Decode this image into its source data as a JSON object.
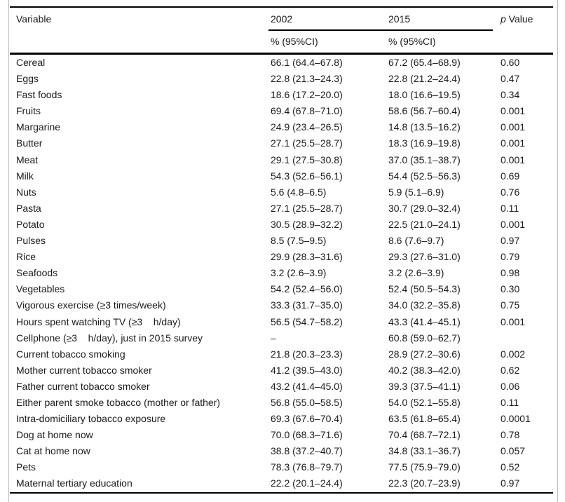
{
  "table": {
    "header": {
      "variable": "Variable",
      "col_2002": "2002",
      "col_2015": "2015",
      "p_italic": "p",
      "p_rest": " Value",
      "subheader_2002": "% (95%CI)",
      "subheader_2015": "% (95%CI)"
    },
    "colors": {
      "rule": "#000000",
      "figure_border": "#bcbcbc",
      "text": "#1a1a1a",
      "background": "#ffffff"
    },
    "rows": [
      {
        "variable": "Cereal",
        "v2002": "66.1 (64.4–67.8)",
        "v2015": "67.2 (65.4–68.9)",
        "p": "0.60"
      },
      {
        "variable": "Eggs",
        "v2002": "22.8 (21.3–24.3)",
        "v2015": "22.8 (21.2–24.4)",
        "p": "0.47"
      },
      {
        "variable": "Fast foods",
        "v2002": "18.6 (17.2–20.0)",
        "v2015": "18.0 (16.6–19.5)",
        "p": "0.34"
      },
      {
        "variable": "Fruits",
        "v2002": "69.4 (67.8–71.0)",
        "v2015": "58.6 (56.7–60.4)",
        "p": "0.001"
      },
      {
        "variable": "Margarine",
        "v2002": "24.9 (23.4–26.5)",
        "v2015": "14.8 (13.5–16.2)",
        "p": "0.001"
      },
      {
        "variable": "Butter",
        "v2002": "27.1 (25.5–28.7)",
        "v2015": "18.3 (16.9–19.8)",
        "p": "0.001"
      },
      {
        "variable": "Meat",
        "v2002": "29.1 (27.5–30.8)",
        "v2015": "37.0 (35.1–38.7)",
        "p": "0.001"
      },
      {
        "variable": "Milk",
        "v2002": "54.3 (52.6–56.1)",
        "v2015": "54.4 (52.5–56.3)",
        "p": "0.69"
      },
      {
        "variable": "Nuts",
        "v2002": "5.6 (4.8–6.5)",
        "v2015": "5.9 (5.1–6.9)",
        "p": "0.76"
      },
      {
        "variable": "Pasta",
        "v2002": "27.1 (25.5–28.7)",
        "v2015": "30.7 (29.0–32.4)",
        "p": "0.11"
      },
      {
        "variable": "Potato",
        "v2002": "30.5 (28.9–32.2)",
        "v2015": "22.5 (21.0–24.1)",
        "p": "0.001"
      },
      {
        "variable": "Pulses",
        "v2002": "8.5 (7.5–9.5)",
        "v2015": "8.6 (7.6–9.7)",
        "p": "0.97"
      },
      {
        "variable": "Rice",
        "v2002": "29.9 (28.3–31.6)",
        "v2015": "29.3 (27.6–31.0)",
        "p": "0.79"
      },
      {
        "variable": "Seafoods",
        "v2002": "3.2 (2.6–3.9)",
        "v2015": "3.2 (2.6–3.9)",
        "p": "0.98"
      },
      {
        "variable": "Vegetables",
        "v2002": "54.2 (52.4–56.0)",
        "v2015": "52.4 (50.5–54.3)",
        "p": "0.30"
      },
      {
        "variable": "Vigorous exercise (≥3 times/week)",
        "v2002": "33.3 (31.7–35.0)",
        "v2015": "34.0 (32.2–35.8)",
        "p": "0.75"
      },
      {
        "variable": "Hours spent watching TV (≥3    h/day)",
        "v2002": "56.5 (54.7–58.2)",
        "v2015": "43.3 (41.4–45.1)",
        "p": "0.001"
      },
      {
        "variable": "Cellphone (≥3    h/day), just in 2015 survey",
        "v2002": "–",
        "v2015": "60.8 (59.0–62.7)",
        "p": ""
      },
      {
        "variable": "Current tobacco smoking",
        "v2002": "21.8 (20.3–23.3)",
        "v2015": "28.9 (27.2–30.6)",
        "p": "0.002"
      },
      {
        "variable": "Mother current tobacco smoker",
        "v2002": "41.2 (39.5–43.0)",
        "v2015": "40.2 (38.3–42.0)",
        "p": "0.62"
      },
      {
        "variable": "Father current tobacco smoker",
        "v2002": "43.2 (41.4–45.0)",
        "v2015": "39.3 (37.5–41.1)",
        "p": "0.06"
      },
      {
        "variable": "Either parent smoke tobacco (mother or father)",
        "v2002": "56.8 (55.0–58.5)",
        "v2015": "54.0 (52.1–55.8)",
        "p": "0.11"
      },
      {
        "variable": "Intra-domiciliary tobacco exposure",
        "v2002": "69.3 (67.6–70.4)",
        "v2015": "63.5 (61.8–65.4)",
        "p": "0.0001"
      },
      {
        "variable": "Dog at home now",
        "v2002": "70.0 (68.3–71.6)",
        "v2015": "70.4 (68.7–72.1)",
        "p": "0.78"
      },
      {
        "variable": "Cat at home now",
        "v2002": "38.8 (37.2–40.7)",
        "v2015": "34.8 (33.1–36.7)",
        "p": "0.057"
      },
      {
        "variable": "Pets",
        "v2002": "78.3 (76.8–79.7)",
        "v2015": "77.5 (75.9–79.0)",
        "p": "0.52"
      },
      {
        "variable": "Maternal tertiary education",
        "v2002": "22.2 (20.1–24.4)",
        "v2015": "22.3 (20.7–23.9)",
        "p": "0.97"
      }
    ]
  }
}
